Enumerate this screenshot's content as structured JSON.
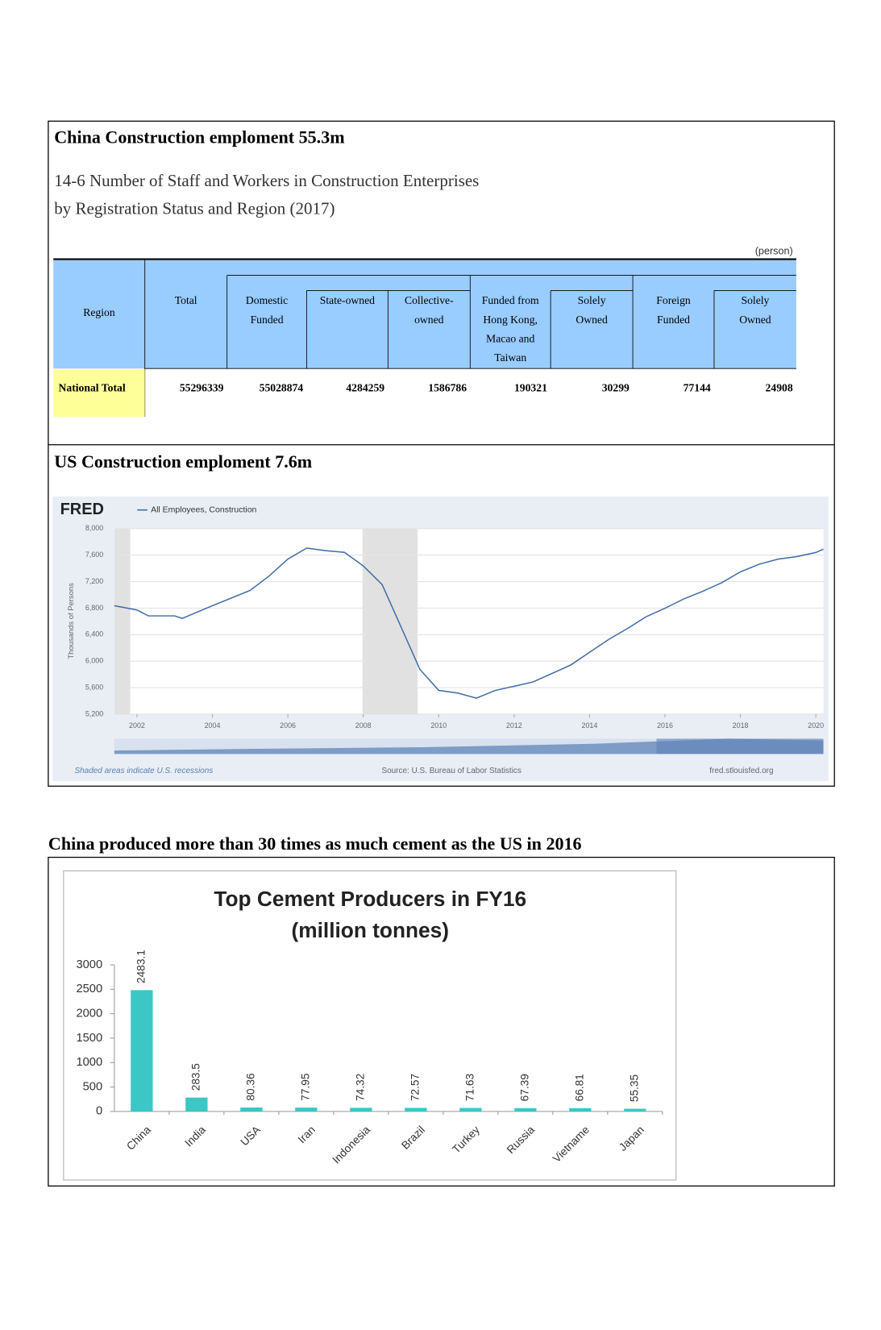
{
  "china_section": {
    "title": "China Construction emploment 55.3m",
    "table": {
      "caption": [
        "14-6  Number of Staff and Workers in Construction Enterprises",
        "by Registration Status and Region (2017)"
      ],
      "unit": "(person)",
      "headers": [
        "Region",
        "Total",
        "Domestic Funded",
        "State-owned",
        "Collective-owned",
        "Funded from Hong Kong, Macao and Taiwan",
        "Solely Owned",
        "Foreign Funded",
        "Solely Owned"
      ],
      "rows": [
        [
          "National Total",
          55296339,
          55028874,
          4284259,
          1586786,
          190321,
          30299,
          77144,
          24908
        ]
      ]
    }
  },
  "us_section": {
    "title": "US Construction emploment  7.6m"
  },
  "cement_section": {
    "title": "China produced more than 30 times as much cement as the US in 2016"
  },
  "chart_data": [
    {
      "type": "line",
      "logo": "FRED",
      "y_label": "Thousands of Persons",
      "note": "Shaded areas indicate U.S. recessions",
      "source": "Source: U.S. Bureau of Labor Statistics",
      "url": "fred.stlouisfed.org",
      "x": [
        2001.4,
        2002,
        2002.3,
        2003,
        2003.2,
        2004,
        2005,
        2005.5,
        2006,
        2006.5,
        2007,
        2007.5,
        2008,
        2008.5,
        2009,
        2009.5,
        2010,
        2010.5,
        2011,
        2011.5,
        2012,
        2012.5,
        2013,
        2013.5,
        2014,
        2014.5,
        2015,
        2015.5,
        2016,
        2016.5,
        2017,
        2017.5,
        2018,
        2018.5,
        2019,
        2019.5,
        2020,
        2020.2
      ],
      "series": [
        {
          "name": "All Employees, Construction",
          "color": "#3e6aa6",
          "values": [
            6836,
            6772,
            6683,
            6683,
            6645,
            6836,
            7067,
            7284,
            7540,
            7706,
            7668,
            7642,
            7437,
            7156,
            6517,
            5877,
            5558,
            5519,
            5442,
            5558,
            5621,
            5685,
            5813,
            5941,
            6133,
            6325,
            6491,
            6670,
            6798,
            6939,
            7054,
            7182,
            7348,
            7463,
            7540,
            7578,
            7640,
            7690
          ]
        }
      ],
      "shaded_periods": [
        [
          2001.4,
          2001.82
        ],
        [
          2007.98,
          2009.44
        ]
      ],
      "xlim": [
        2001.4,
        2020.2
      ],
      "xticks": [
        2002,
        2004,
        2006,
        2008,
        2010,
        2012,
        2014,
        2016,
        2018,
        2020
      ],
      "ylim": [
        5200,
        8000
      ],
      "yticks": [
        {
          "value": 5200,
          "label": "5,200"
        },
        {
          "value": 5600,
          "label": "5,600"
        },
        {
          "value": 6000,
          "label": "6,000"
        },
        {
          "value": 6400,
          "label": "6,400"
        },
        {
          "value": 6800,
          "label": "6,800"
        },
        {
          "value": 7200,
          "label": "7,200"
        },
        {
          "value": 7600,
          "label": "7,600"
        },
        {
          "value": 8000,
          "label": "8,000"
        }
      ],
      "grid": true
    },
    {
      "type": "bar",
      "title": "Top Cement Producers in FY16",
      "subtitle": "(million tonnes)",
      "categories": [
        "China",
        "India",
        "USA",
        "Iran",
        "Indonesia",
        "Brazil",
        "Turkey",
        "Russia",
        "Vietname",
        "Japan"
      ],
      "values": [
        2483.1,
        283.5,
        80.36,
        77.95,
        74.32,
        72.57,
        71.63,
        67.39,
        66.81,
        55.35
      ],
      "color": "#3cc6c6",
      "ylim": [
        0,
        3000
      ],
      "yticks": [
        0,
        500,
        1000,
        1500,
        2000,
        2500,
        3000
      ],
      "grid": false
    }
  ]
}
